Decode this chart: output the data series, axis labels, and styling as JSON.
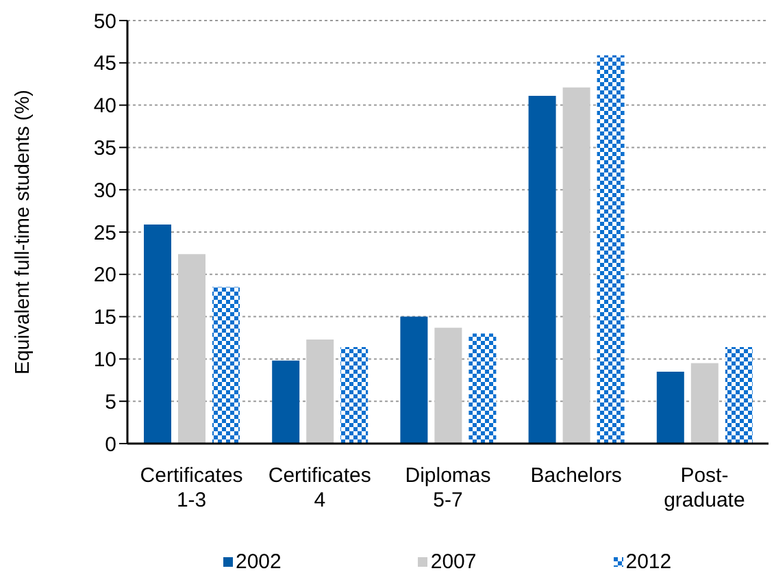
{
  "chart_data": {
    "type": "bar",
    "ylabel": "Equivalent full-time students (%)",
    "categories": [
      "Certificates 1-3",
      "Certificates 4",
      "Diplomas 5-7",
      "Bachelors",
      "Post-graduate"
    ],
    "series": [
      {
        "name": "2002",
        "color": "#005aa5",
        "values": [
          25.9,
          9.8,
          15.0,
          41.1,
          8.5
        ]
      },
      {
        "name": "2007",
        "color": "#cccccc",
        "values": [
          22.4,
          12.3,
          13.7,
          42.1,
          9.5
        ]
      },
      {
        "name": "2012",
        "color": "#0c70cf",
        "values": [
          18.5,
          11.4,
          13.0,
          45.9,
          11.4
        ]
      }
    ],
    "ylim": [
      0,
      50
    ],
    "yticks": [
      0,
      5,
      10,
      15,
      20,
      25,
      30,
      35,
      40,
      45,
      50
    ],
    "grid": "y",
    "legend": "bottom"
  }
}
